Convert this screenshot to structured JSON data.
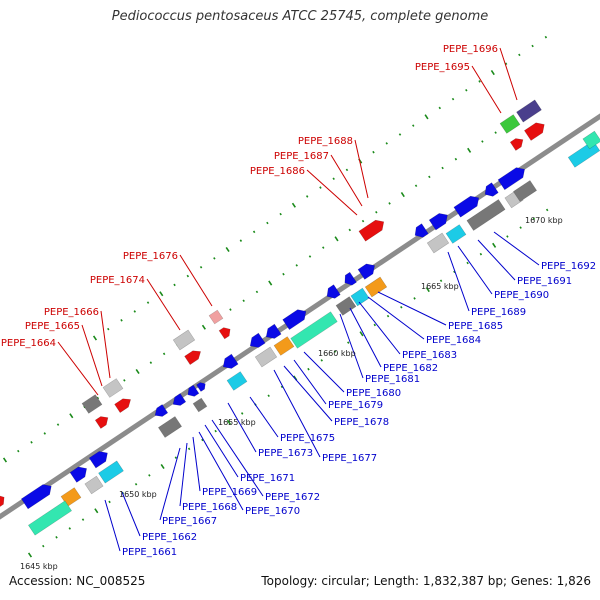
{
  "title": "Pediococcus pentosaceus ATCC 25745, complete genome",
  "footer": {
    "accession": "Accession: NC_008525",
    "summary": "Topology: circular; Length: 1,832,387 bp; Genes: 1,826"
  },
  "colors": {
    "background": "#ffffff",
    "backbone": "#8c8c8c",
    "tick": "#1a8a1a",
    "cds_forward": "#0a0ae6",
    "red_label": "#cc0000",
    "blue_label": "#0000cc",
    "teal_box": "#33e6b0",
    "orange_box": "#f39a1a",
    "cyan_box": "#1ccbe6",
    "red_box": "#e60f0f",
    "gray_box": "#777777",
    "light_gray_box": "#c4c4c4",
    "green_box": "#3cc83c",
    "purple_box": "#4a3f8c"
  },
  "scale_labels": [
    "1645 kbp",
    "1650 kbp",
    "1655 kbp",
    "1660 kbp",
    "1665 kbp",
    "1670 kbp"
  ],
  "red_labels": [
    "PEPE_1664",
    "PEPE_1665",
    "PEPE_1666",
    "PEPE_1674",
    "PEPE_1676",
    "PEPE_1686",
    "PEPE_1687",
    "PEPE_1688",
    "PEPE_1695",
    "PEPE_1696"
  ],
  "blue_labels": [
    "PEPE_1661",
    "PEPE_1662",
    "PEPE_1667",
    "PEPE_1668",
    "PEPE_1669",
    "PEPE_1670",
    "PEPE_1671",
    "PEPE_1672",
    "PEPE_1673",
    "PEPE_1675",
    "PEPE_1677",
    "PEPE_1678",
    "PEPE_1679",
    "PEPE_1680",
    "PEPE_1681",
    "PEPE_1682",
    "PEPE_1683",
    "PEPE_1684",
    "PEPE_1685",
    "PEPE_1689",
    "PEPE_1690",
    "PEPE_1691",
    "PEPE_1692"
  ]
}
